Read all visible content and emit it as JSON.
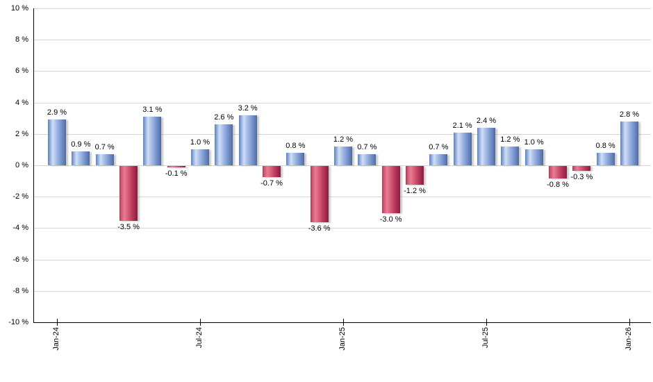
{
  "chart_data": {
    "type": "bar",
    "title": "",
    "xlabel": "",
    "ylabel": "",
    "grid": true,
    "legend": null,
    "values": [
      2.9,
      0.9,
      0.7,
      -3.5,
      3.1,
      -0.1,
      1.0,
      2.6,
      3.2,
      -0.7,
      0.8,
      -3.6,
      1.2,
      0.7,
      -3.0,
      -1.2,
      0.7,
      2.1,
      2.4,
      1.2,
      1.0,
      -0.8,
      -0.3,
      0.8,
      2.8
    ],
    "value_labels": [
      "2.9 %",
      "0.9 %",
      "0.7 %",
      "-3.5 %",
      "3.1 %",
      "-0.1 %",
      "1.0 %",
      "2.6 %",
      "3.2 %",
      "-0.7 %",
      "0.8 %",
      "-3.6 %",
      "1.2 %",
      "0.7 %",
      "-3.0 %",
      "-1.2 %",
      "0.7 %",
      "2.1 %",
      "2.4 %",
      "1.2 %",
      "1.0 %",
      "-0.8 %",
      "-0.3 %",
      "0.8 %",
      "2.8 %"
    ],
    "x_axis": {
      "tick_labels": [
        "Jan-24",
        "Jul-24",
        "Jan-25",
        "Jul-25",
        "Jan-26"
      ],
      "tick_indices": [
        0,
        6,
        12,
        18,
        24
      ]
    },
    "y_axis": {
      "ticks": [
        10,
        8,
        6,
        4,
        2,
        0,
        -2,
        -4,
        -6,
        -8,
        -10
      ],
      "tick_labels": [
        "10 %",
        "8 %",
        "6 %",
        "4 %",
        "2 %",
        "0 %",
        "-2 %",
        "-4 %",
        "-6 %",
        "-8 %",
        "-10 %"
      ],
      "ylim": [
        -10,
        10
      ],
      "unit": "%"
    },
    "colors": {
      "positive_bar": "#7d99d2",
      "positive_highlight": "#d0dff6",
      "negative_bar": "#b93a5c",
      "negative_highlight": "#ea7a92",
      "gridline": "#d5d5d5",
      "axis": "#000000",
      "background": "#ffffff",
      "label_text": "#000000"
    }
  }
}
